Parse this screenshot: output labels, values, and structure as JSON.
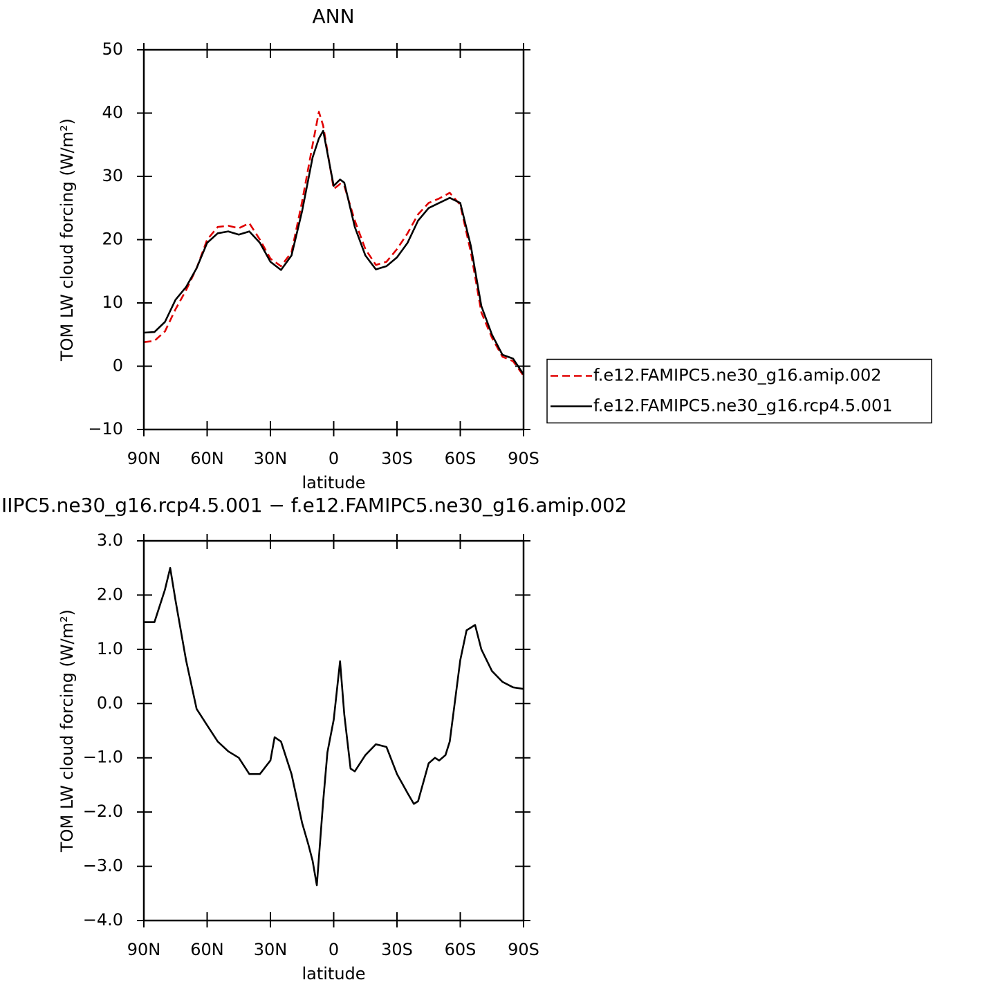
{
  "chart_data": [
    {
      "type": "line",
      "title": "ANN",
      "xlabel": "latitude",
      "ylabel": "TOM LW cloud forcing (W/m²)",
      "x": [
        90,
        85,
        80,
        75,
        70,
        65,
        60,
        55,
        50,
        45,
        40,
        35,
        30,
        25,
        20,
        15,
        10,
        7,
        5,
        0,
        -3,
        -5,
        -10,
        -15,
        -20,
        -25,
        -30,
        -35,
        -40,
        -45,
        -50,
        -55,
        -60,
        -65,
        -70,
        -75,
        -80,
        -85,
        -90
      ],
      "series": [
        {
          "name": "f.e12.FAMIPC5.ne30_g16.amip.002",
          "color": "#e00000",
          "style": "dashed",
          "values": [
            3.8,
            4.0,
            5.5,
            9,
            12,
            15.5,
            20,
            22,
            22.2,
            21.8,
            22.6,
            20,
            17,
            15.8,
            18,
            26,
            35,
            40.2,
            38,
            28,
            28.8,
            28.5,
            23,
            18.5,
            16,
            16.5,
            18.5,
            21,
            24,
            25.8,
            26.5,
            27.4,
            25.5,
            18,
            8.5,
            4.5,
            1.5,
            0.8,
            -1.5
          ]
        },
        {
          "name": "f.e12.FAMIPC5.ne30_g16.rcp4.5.001",
          "color": "#000000",
          "style": "solid",
          "values": [
            5.3,
            5.4,
            7,
            10.5,
            12.5,
            15.5,
            19.5,
            21,
            21.3,
            20.8,
            21.3,
            19.5,
            16.5,
            15.2,
            17.5,
            24.5,
            33,
            36,
            37.2,
            28.5,
            29.5,
            29,
            22,
            17.5,
            15.3,
            15.8,
            17.2,
            19.5,
            23,
            25,
            25.8,
            26.6,
            25.8,
            19,
            9.5,
            5,
            1.8,
            1.2,
            -1.3
          ]
        }
      ],
      "xlim": [
        90,
        -90
      ],
      "xticks": [
        {
          "value": 90,
          "label": "90N"
        },
        {
          "value": 60,
          "label": "60N"
        },
        {
          "value": 30,
          "label": "30N"
        },
        0,
        {
          "value": -30,
          "label": "30S"
        },
        {
          "value": -60,
          "label": "60S"
        },
        {
          "value": -90,
          "label": "90S"
        }
      ],
      "ylim": [
        -10,
        50
      ],
      "yticks": [
        {
          "value": -10,
          "label": "−10"
        },
        0,
        10,
        20,
        30,
        40,
        50
      ],
      "legend": "right"
    },
    {
      "type": "line",
      "title": "IIPC5.ne30_g16.rcp4.5.001 − f.e12.FAMIPC5.ne30_g16.amip.002",
      "xlabel": "latitude",
      "ylabel": "TOM LW cloud forcing (W/m²)",
      "x": [
        90,
        85,
        80,
        77.5,
        75,
        70,
        65,
        60,
        55,
        50,
        45,
        40,
        35,
        30,
        28,
        25,
        20,
        15,
        12,
        10,
        8,
        5,
        3,
        0,
        -3,
        -5,
        -8,
        -10,
        -15,
        -20,
        -25,
        -30,
        -35,
        -38,
        -40,
        -45,
        -48,
        -50,
        -53,
        -55,
        -60,
        -63,
        -65,
        -67,
        -70,
        -75,
        -80,
        -85,
        -90
      ],
      "series": [
        {
          "color": "#000000",
          "style": "solid",
          "values": [
            1.5,
            1.5,
            2.1,
            2.5,
            1.9,
            0.8,
            -0.1,
            -0.4,
            -0.7,
            -0.88,
            -1.0,
            -1.3,
            -1.3,
            -1.05,
            -0.62,
            -0.7,
            -1.3,
            -2.2,
            -2.6,
            -2.9,
            -3.35,
            -1.8,
            -0.9,
            -0.3,
            0.78,
            -0.2,
            -1.2,
            -1.25,
            -0.95,
            -0.75,
            -0.8,
            -1.3,
            -1.65,
            -1.85,
            -1.8,
            -1.1,
            -1.0,
            -1.05,
            -0.95,
            -0.7,
            0.8,
            1.35,
            1.4,
            1.45,
            1.0,
            0.6,
            0.4,
            0.3,
            0.27
          ]
        }
      ],
      "xlim": [
        90,
        -90
      ],
      "xticks": [
        {
          "value": 90,
          "label": "90N"
        },
        {
          "value": 60,
          "label": "60N"
        },
        {
          "value": 30,
          "label": "30N"
        },
        0,
        {
          "value": -30,
          "label": "30S"
        },
        {
          "value": -60,
          "label": "60S"
        },
        {
          "value": -90,
          "label": "90S"
        }
      ],
      "ylim": [
        -4,
        3
      ],
      "yticks": [
        {
          "value": -4,
          "label": "−4.0"
        },
        {
          "value": -3,
          "label": "−3.0"
        },
        {
          "value": -2,
          "label": "−2.0"
        },
        {
          "value": -1,
          "label": "−1.0"
        },
        {
          "value": 0,
          "label": "0.0"
        },
        {
          "value": 1,
          "label": "1.0"
        },
        {
          "value": 2,
          "label": "2.0"
        },
        {
          "value": 3,
          "label": "3.0"
        }
      ]
    }
  ]
}
